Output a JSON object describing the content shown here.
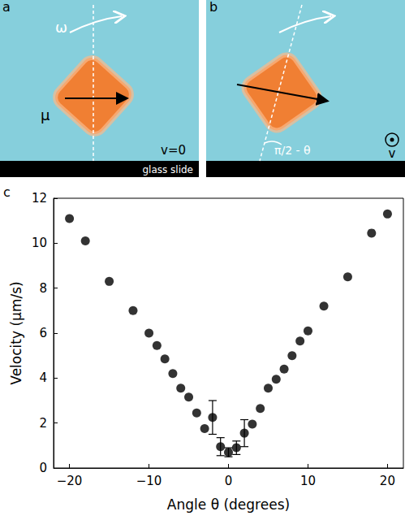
{
  "panels": [
    {
      "letter": "a",
      "omega": "ω",
      "moment": "μ",
      "velocity": "v=0",
      "surface": "glass slide"
    },
    {
      "letter": "b",
      "angle": "π/2 - θ",
      "velocity": "v"
    }
  ],
  "chart_data": {
    "letter": "c",
    "type": "scatter",
    "x_label": "Angle θ (degrees)",
    "y_label": "Velocity (μm/s)",
    "x": [
      -20,
      -18,
      -15,
      -12,
      -10,
      -9,
      -8,
      -7,
      -6,
      -5,
      -4,
      -3,
      -2,
      -1,
      0,
      1,
      2,
      3,
      4,
      5,
      6,
      7,
      8,
      9,
      10,
      12,
      15,
      18,
      20
    ],
    "values": [
      11.1,
      10.1,
      8.3,
      7.0,
      6.0,
      5.45,
      4.85,
      4.2,
      3.55,
      3.15,
      2.45,
      1.75,
      2.25,
      0.95,
      0.7,
      0.9,
      1.55,
      1.95,
      2.65,
      3.55,
      3.95,
      4.4,
      5.0,
      5.65,
      6.1,
      7.2,
      8.5,
      10.45,
      11.3
    ],
    "errors": [
      null,
      null,
      null,
      null,
      null,
      null,
      null,
      null,
      null,
      null,
      null,
      null,
      0.75,
      0.4,
      0.2,
      0.3,
      0.6,
      null,
      null,
      null,
      null,
      null,
      null,
      null,
      null,
      null,
      null,
      null,
      null
    ],
    "xlim": [
      -22,
      22
    ],
    "xticks": [
      {
        "value": -20,
        "label": "−20"
      },
      {
        "value": -10,
        "label": "−10"
      },
      0,
      10,
      20
    ],
    "ylim": [
      0,
      12
    ],
    "yticks": [
      0,
      2,
      4,
      6,
      8,
      10,
      12
    ],
    "color": "#000000",
    "marker": "circle",
    "grid": false
  }
}
